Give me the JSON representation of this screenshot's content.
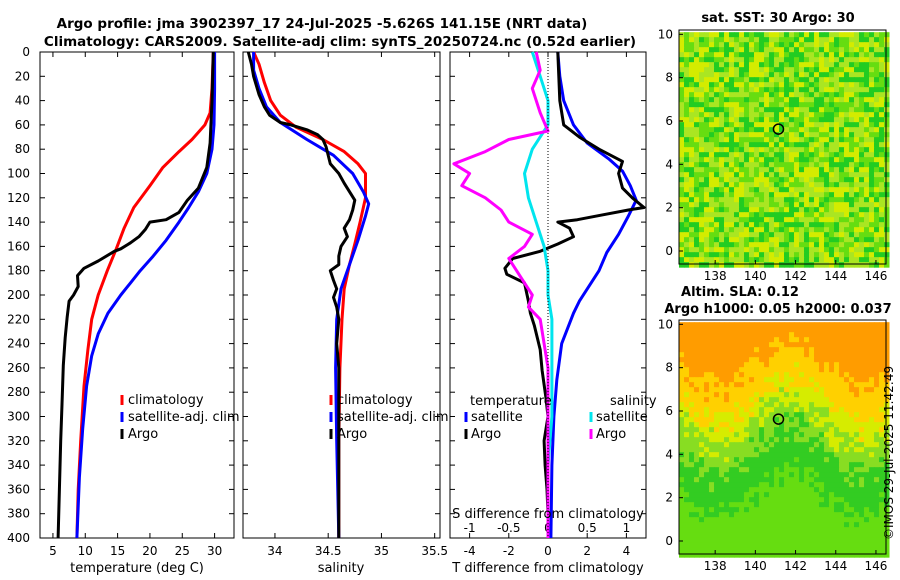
{
  "header": {
    "title_line1": "Argo profile: jma 3902397_17 24-Jul-2025 -5.626S 141.15E (NRT data)",
    "title_line2": "Climatology: CARS2009. Satellite-adj clim: synTS_20250724.nc (0.52d earlier)"
  },
  "colors": {
    "climatology": "#ff0000",
    "satellite": "#0000ff",
    "argo": "#000000",
    "sal_satellite": "#00e5ee",
    "sal_argo": "#ff00ff"
  },
  "chart_data": [
    {
      "type": "line",
      "name": "temperature-profile",
      "xlabel": "temperature (deg C)",
      "xticks": [
        "5",
        "10",
        "15",
        "20",
        "25",
        "30"
      ],
      "xlim": [
        3,
        33
      ],
      "ylim": [
        0,
        400
      ],
      "yticks": [
        "0",
        "20",
        "40",
        "60",
        "80",
        "100",
        "120",
        "140",
        "160",
        "180",
        "200",
        "220",
        "240",
        "260",
        "280",
        "300",
        "320",
        "340",
        "360",
        "380",
        "400"
      ],
      "legend": [
        "climatology",
        "satellite-adj. clim",
        "Argo"
      ],
      "series": [
        {
          "name": "climatology",
          "color": "#ff0000",
          "points": [
            [
              29.8,
              0
            ],
            [
              29.6,
              30
            ],
            [
              29.3,
              50
            ],
            [
              28.5,
              60
            ],
            [
              26.5,
              72
            ],
            [
              24.5,
              82
            ],
            [
              22,
              95
            ],
            [
              20,
              110
            ],
            [
              17.5,
              128
            ],
            [
              16,
              145
            ],
            [
              14.8,
              162
            ],
            [
              13.4,
              180
            ],
            [
              12,
              200
            ],
            [
              11,
              220
            ],
            [
              10.4,
              245
            ],
            [
              9.8,
              275
            ],
            [
              9.3,
              320
            ],
            [
              8.9,
              360
            ],
            [
              8.7,
              400
            ]
          ]
        },
        {
          "name": "satellite-adj. clim",
          "color": "#0000ff",
          "points": [
            [
              30,
              0
            ],
            [
              30,
              30
            ],
            [
              29.9,
              60
            ],
            [
              29.6,
              80
            ],
            [
              28.8,
              100
            ],
            [
              27.5,
              115
            ],
            [
              26,
              128
            ],
            [
              24.5,
              140
            ],
            [
              22.5,
              155
            ],
            [
              20.5,
              168
            ],
            [
              18.5,
              180
            ],
            [
              17,
              190
            ],
            [
              15.5,
              200
            ],
            [
              13.5,
              215
            ],
            [
              12,
              232
            ],
            [
              11,
              250
            ],
            [
              10.2,
              275
            ],
            [
              9.6,
              310
            ],
            [
              9.1,
              350
            ],
            [
              8.7,
              400
            ]
          ]
        },
        {
          "name": "Argo",
          "color": "#000000",
          "points": [
            [
              29.8,
              0
            ],
            [
              29.6,
              40
            ],
            [
              29.3,
              75
            ],
            [
              28.8,
              95
            ],
            [
              27.5,
              112
            ],
            [
              25.8,
              122
            ],
            [
              24.5,
              132
            ],
            [
              22.5,
              138
            ],
            [
              20,
              140
            ],
            [
              19.3,
              146
            ],
            [
              18.3,
              152
            ],
            [
              17,
              157
            ],
            [
              15.5,
              162
            ],
            [
              14.5,
              164
            ],
            [
              12,
              172
            ],
            [
              9.8,
              178
            ],
            [
              8.8,
              184
            ],
            [
              8.9,
              193
            ],
            [
              8.2,
              200
            ],
            [
              7.5,
              205
            ],
            [
              7.2,
              218
            ],
            [
              6.9,
              235
            ],
            [
              6.6,
              258
            ],
            [
              6.4,
              290
            ],
            [
              6.2,
              320
            ],
            [
              6,
              360
            ],
            [
              5.8,
              400
            ]
          ]
        }
      ]
    },
    {
      "type": "line",
      "name": "salinity-profile",
      "xlabel": "salinity",
      "xticks": [
        "34",
        "34.5",
        "35",
        "35.5"
      ],
      "xlim": [
        33.7,
        35.55
      ],
      "ylim": [
        0,
        400
      ],
      "legend": [
        "climatology",
        "satellite-adj. clim",
        "Argo"
      ],
      "series": [
        {
          "name": "climatology",
          "color": "#ff0000",
          "points": [
            [
              33.8,
              0
            ],
            [
              33.85,
              10
            ],
            [
              33.9,
              25
            ],
            [
              33.96,
              40
            ],
            [
              34.05,
              52
            ],
            [
              34.2,
              62
            ],
            [
              34.45,
              72
            ],
            [
              34.65,
              82
            ],
            [
              34.78,
              92
            ],
            [
              34.85,
              100
            ],
            [
              34.85,
              120
            ],
            [
              34.8,
              140
            ],
            [
              34.75,
              158
            ],
            [
              34.7,
              175
            ],
            [
              34.65,
              195
            ],
            [
              34.63,
              220
            ],
            [
              34.61,
              260
            ],
            [
              34.6,
              320
            ],
            [
              34.6,
              400
            ]
          ]
        },
        {
          "name": "satellite-adj. clim",
          "color": "#0000ff",
          "points": [
            [
              33.8,
              0
            ],
            [
              33.8,
              15
            ],
            [
              33.85,
              30
            ],
            [
              33.92,
              45
            ],
            [
              34.05,
              58
            ],
            [
              34.3,
              72
            ],
            [
              34.55,
              85
            ],
            [
              34.73,
              100
            ],
            [
              34.83,
              115
            ],
            [
              34.88,
              125
            ],
            [
              34.85,
              135
            ],
            [
              34.78,
              155
            ],
            [
              34.7,
              175
            ],
            [
              34.62,
              195
            ],
            [
              34.58,
              220
            ],
            [
              34.57,
              260
            ],
            [
              34.58,
              320
            ],
            [
              34.6,
              400
            ]
          ]
        },
        {
          "name": "Argo",
          "color": "#000000",
          "points": [
            [
              33.75,
              0
            ],
            [
              33.78,
              10
            ],
            [
              33.8,
              20
            ],
            [
              33.85,
              35
            ],
            [
              33.9,
              45
            ],
            [
              33.95,
              52
            ],
            [
              34.05,
              58
            ],
            [
              34.15,
              60
            ],
            [
              34.3,
              64
            ],
            [
              34.4,
              68
            ],
            [
              34.45,
              72
            ],
            [
              34.48,
              78
            ],
            [
              34.5,
              85
            ],
            [
              34.52,
              92
            ],
            [
              34.6,
              100
            ],
            [
              34.65,
              108
            ],
            [
              34.7,
              115
            ],
            [
              34.75,
              122
            ],
            [
              34.73,
              130
            ],
            [
              34.7,
              138
            ],
            [
              34.65,
              145
            ],
            [
              34.68,
              152
            ],
            [
              34.62,
              160
            ],
            [
              34.6,
              168
            ],
            [
              34.6,
              175
            ],
            [
              34.52,
              180
            ],
            [
              34.55,
              188
            ],
            [
              34.58,
              195
            ],
            [
              34.55,
              202
            ],
            [
              34.58,
              210
            ],
            [
              34.6,
              220
            ],
            [
              34.58,
              240
            ],
            [
              34.6,
              260
            ],
            [
              34.6,
              300
            ],
            [
              34.6,
              340
            ],
            [
              34.6,
              400
            ]
          ]
        }
      ]
    },
    {
      "type": "line",
      "name": "difference-profile",
      "xlabel": "T difference from climatology",
      "xlabel_top": "S difference from climatology",
      "xticks": [
        "-4",
        "-2",
        "0",
        "2",
        "4"
      ],
      "xticks_top": [
        "-1",
        "-0.5",
        "0",
        "0.5",
        "1"
      ],
      "xlim": [
        -5,
        5
      ],
      "ylim": [
        0,
        400
      ],
      "legend_temperature_title": "temperature",
      "legend_salinity_title": "salinity",
      "legend_items": [
        "satellite",
        "Argo"
      ],
      "series": [
        {
          "name": "T satellite",
          "color": "#0000ff",
          "points": [
            [
              0.5,
              0
            ],
            [
              0.6,
              20
            ],
            [
              0.8,
              40
            ],
            [
              1.3,
              60
            ],
            [
              2,
              75
            ],
            [
              3.1,
              88
            ],
            [
              3.8,
              98
            ],
            [
              4.2,
              110
            ],
            [
              4.5,
              122
            ],
            [
              4.1,
              135
            ],
            [
              3.6,
              150
            ],
            [
              3,
              165
            ],
            [
              2.6,
              180
            ],
            [
              2.2,
              190
            ],
            [
              1.6,
              205
            ],
            [
              1.3,
              215
            ],
            [
              0.7,
              240
            ],
            [
              0.45,
              270
            ],
            [
              0.3,
              300
            ],
            [
              0.2,
              340
            ],
            [
              0.15,
              400
            ]
          ]
        },
        {
          "name": "T Argo",
          "color": "#000000",
          "points": [
            [
              0.5,
              0
            ],
            [
              0.6,
              40
            ],
            [
              0.8,
              60
            ],
            [
              1.6,
              70
            ],
            [
              2.6,
              80
            ],
            [
              3.8,
              90
            ],
            [
              3.6,
              100
            ],
            [
              3.8,
              112
            ],
            [
              4.3,
              120
            ],
            [
              4.9,
              128
            ],
            [
              4.1,
              130
            ],
            [
              2.8,
              134
            ],
            [
              1.5,
              138
            ],
            [
              0.5,
              140
            ],
            [
              1.1,
              145
            ],
            [
              1.3,
              152
            ],
            [
              0.5,
              158
            ],
            [
              -0.4,
              164
            ],
            [
              -1.8,
              170
            ],
            [
              -2.2,
              178
            ],
            [
              -2.1,
              183
            ],
            [
              -1.2,
              190
            ],
            [
              -1,
              205
            ],
            [
              -0.9,
              215
            ],
            [
              -0.7,
              225
            ],
            [
              -0.4,
              245
            ],
            [
              -0.3,
              262
            ],
            [
              -0.1,
              285
            ],
            [
              0,
              300
            ],
            [
              -0.2,
              320
            ],
            [
              -0.15,
              340
            ],
            [
              -0.05,
              360
            ],
            [
              0,
              380
            ],
            [
              0,
              400
            ]
          ]
        },
        {
          "name": "S satellite",
          "color": "#00e5ee",
          "points": [
            [
              -0.2,
              0
            ],
            [
              -0.1,
              20
            ],
            [
              0,
              40
            ],
            [
              0,
              60
            ],
            [
              -0.2,
              80
            ],
            [
              -0.3,
              100
            ],
            [
              -0.25,
              120
            ],
            [
              -0.15,
              140
            ],
            [
              -0.05,
              160
            ],
            [
              0,
              180
            ],
            [
              0,
              200
            ],
            [
              0.05,
              220
            ],
            [
              0.05,
              260
            ],
            [
              0.05,
              300
            ],
            [
              0,
              340
            ],
            [
              0,
              400
            ]
          ]
        },
        {
          "name": "S Argo",
          "color": "#ff00ff",
          "points": [
            [
              -0.15,
              0
            ],
            [
              -0.1,
              15
            ],
            [
              -0.2,
              30
            ],
            [
              -0.1,
              50
            ],
            [
              0,
              65
            ],
            [
              -0.5,
              72
            ],
            [
              -0.8,
              82
            ],
            [
              -1.2,
              92
            ],
            [
              -1.0,
              100
            ],
            [
              -1.1,
              110
            ],
            [
              -0.8,
              120
            ],
            [
              -0.6,
              130
            ],
            [
              -0.5,
              140
            ],
            [
              -0.2,
              150
            ],
            [
              -0.3,
              160
            ],
            [
              -0.5,
              170
            ],
            [
              -0.4,
              180
            ],
            [
              -0.3,
              190
            ],
            [
              -0.2,
              200
            ],
            [
              -0.25,
              210
            ],
            [
              -0.1,
              220
            ],
            [
              -0.05,
              240
            ],
            [
              0,
              260
            ],
            [
              0,
              300
            ],
            [
              0,
              400
            ]
          ]
        }
      ]
    }
  ],
  "sst_map": {
    "title": "sat. SST: 30 Argo: 30",
    "xticks": [
      "138",
      "140",
      "142",
      "144",
      "146"
    ],
    "yticks": [
      "0",
      "2",
      "4",
      "6",
      "8",
      "10"
    ]
  },
  "sla_map": {
    "title_line1": "Altim. SLA: 0.12",
    "title_line2": "Argo h1000: 0.05 h2000: 0.037",
    "xticks": [
      "138",
      "140",
      "142",
      "144",
      "146"
    ],
    "yticks": [
      "0",
      "2",
      "4",
      "6",
      "8",
      "10"
    ]
  },
  "footer": {
    "watermark": "©IMOS 29-Jul-2025 11:42:49"
  }
}
